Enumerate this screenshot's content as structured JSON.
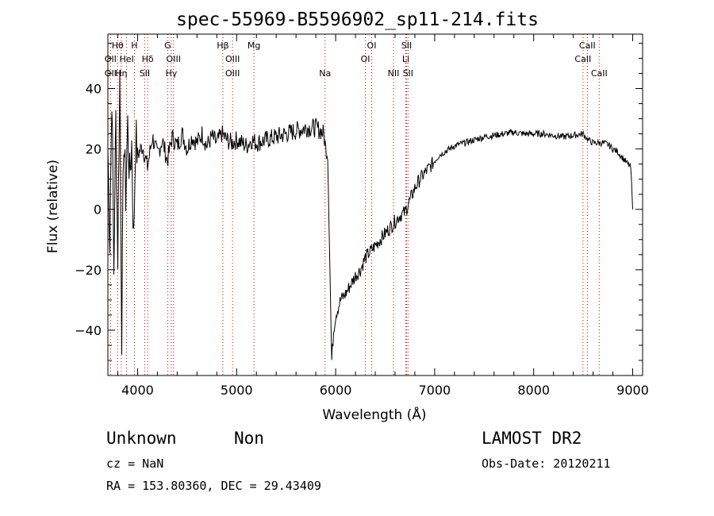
{
  "chart_data": {
    "type": "line",
    "title": "spec-55969-B5596902_sp11-214.fits",
    "xlabel": "Wavelength (Å)",
    "ylabel": "Flux (relative)",
    "xlim": [
      3700,
      9100
    ],
    "ylim": [
      -55,
      58
    ],
    "x_ticks": [
      4000,
      5000,
      6000,
      7000,
      8000,
      9000
    ],
    "x_tick_labels": [
      "4000",
      "5000",
      "6000",
      "7000",
      "8000",
      "9000"
    ],
    "y_ticks": [
      -40,
      -20,
      0,
      20,
      40
    ],
    "y_tick_labels": [
      "−40",
      "−20",
      "0",
      "20",
      "40"
    ],
    "grid": false,
    "line_color": "#000000",
    "line_marker_color": "#cc0000",
    "series": [
      {
        "x": [
          3700,
          3720,
          3740,
          3760,
          3780,
          3800,
          3820,
          3840,
          3860,
          3880,
          3900,
          3920,
          3940,
          3960,
          3980,
          4000,
          4050,
          4100,
          4150,
          4200,
          4250,
          4300,
          4350,
          4400,
          4450,
          4500,
          4550,
          4600,
          4650,
          4700,
          4750,
          4800,
          4850,
          4900,
          4950,
          5000,
          5050,
          5100,
          5150,
          5200,
          5300,
          5400,
          5500,
          5600,
          5700,
          5800,
          5850,
          5880,
          5900,
          5920,
          5940,
          5960,
          5980,
          6000,
          6050,
          6100,
          6150,
          6200,
          6250,
          6300,
          6350,
          6400,
          6450,
          6500,
          6550,
          6600,
          6650,
          6700,
          6750,
          6800,
          6850,
          6900,
          6950,
          7000,
          7050,
          7100,
          7200,
          7300,
          7400,
          7500,
          7600,
          7700,
          7800,
          7900,
          8000,
          8100,
          8200,
          8300,
          8400,
          8500,
          8550,
          8600,
          8650,
          8700,
          8750,
          8800,
          8850,
          8900,
          8950,
          8980,
          9000
        ],
        "y": [
          20,
          -10,
          40,
          -20,
          30,
          -15,
          45,
          -40,
          25,
          5,
          28,
          10,
          22,
          -11,
          24,
          18,
          21,
          14,
          24,
          18,
          23,
          16,
          24,
          21,
          25,
          20,
          24,
          22,
          25,
          21,
          24,
          22,
          25,
          23,
          22,
          23,
          22,
          21,
          23,
          22,
          23,
          24,
          25,
          26,
          27,
          27,
          26,
          25,
          20,
          18,
          -15,
          -50,
          -40,
          -35,
          -30,
          -28,
          -25,
          -22,
          -20,
          -16,
          -14,
          -12,
          -10,
          -8,
          -6,
          -4,
          -2,
          -1,
          3,
          7,
          10,
          12,
          14,
          16,
          18,
          19,
          21,
          22,
          23,
          24,
          24.5,
          25,
          25.5,
          25,
          25,
          25,
          24.5,
          24,
          24.5,
          25,
          23,
          22,
          22,
          22,
          21.5,
          20,
          19,
          17,
          15,
          14,
          0
        ]
      }
    ],
    "spectral_lines": [
      {
        "label": "Hθ",
        "x": 3798,
        "row": 0
      },
      {
        "label": "OII",
        "x": 3727,
        "row": 1
      },
      {
        "label": "HeI",
        "x": 3889,
        "row": 1
      },
      {
        "label": "OII",
        "x": 3727,
        "row": 2
      },
      {
        "label": "Hη",
        "x": 3835,
        "row": 2
      },
      {
        "label": "H",
        "x": 3968,
        "row": 0
      },
      {
        "label": "Hδ",
        "x": 4102,
        "row": 1
      },
      {
        "label": "SII",
        "x": 4072,
        "row": 2
      },
      {
        "label": "G",
        "x": 4304,
        "row": 0
      },
      {
        "label": "OIII",
        "x": 4363,
        "row": 1
      },
      {
        "label": "Hγ",
        "x": 4340,
        "row": 2
      },
      {
        "label": "Hβ",
        "x": 4861,
        "row": 0
      },
      {
        "label": "OIII",
        "x": 4959,
        "row": 1
      },
      {
        "label": "OIII",
        "x": 4959,
        "row": 2
      },
      {
        "label": "Mg",
        "x": 5175,
        "row": 0
      },
      {
        "label": "Na",
        "x": 5893,
        "row": 2
      },
      {
        "label": "OI",
        "x": 6364,
        "row": 0
      },
      {
        "label": "OI",
        "x": 6300,
        "row": 1
      },
      {
        "label": "SII",
        "x": 6717,
        "row": 0
      },
      {
        "label": "Li",
        "x": 6708,
        "row": 1
      },
      {
        "label": "NII",
        "x": 6584,
        "row": 2
      },
      {
        "label": "SII",
        "x": 6731,
        "row": 2
      },
      {
        "label": "CaII",
        "x": 8542,
        "row": 0
      },
      {
        "label": "CaII",
        "x": 8498,
        "row": 1
      },
      {
        "label": "CaII",
        "x": 8662,
        "row": 2
      }
    ]
  },
  "footer": {
    "object_class": "Unknown",
    "subclass": "Non",
    "survey": "LAMOST DR2",
    "redshift": "cz = NaN",
    "obs_date": "Obs-Date: 20120211",
    "coordinates": "RA = 153.80360, DEC =  29.43409"
  }
}
